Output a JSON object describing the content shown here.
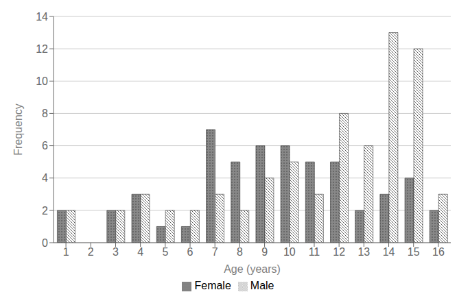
{
  "chart_data": {
    "type": "bar",
    "categories": [
      "1",
      "2",
      "3",
      "4",
      "5",
      "6",
      "7",
      "8",
      "9",
      "10",
      "11",
      "12",
      "13",
      "14",
      "15",
      "16"
    ],
    "series": [
      {
        "name": "Female",
        "color": "#888888",
        "values": [
          2,
          0,
          2,
          3,
          1,
          1,
          7,
          5,
          6,
          6,
          5,
          5,
          2,
          3,
          4,
          2
        ]
      },
      {
        "name": "Male",
        "color": "#ffffff",
        "values": [
          2,
          0,
          2,
          3,
          2,
          2,
          3,
          2,
          4,
          5,
          3,
          8,
          6,
          13,
          12,
          3
        ]
      }
    ],
    "xlabel": "Age (years)",
    "ylabel": "Frequency",
    "ylim": [
      0,
      14
    ],
    "yticks": [
      0,
      2,
      4,
      6,
      8,
      10,
      12,
      14
    ],
    "grid": true,
    "legend": "bottom"
  }
}
